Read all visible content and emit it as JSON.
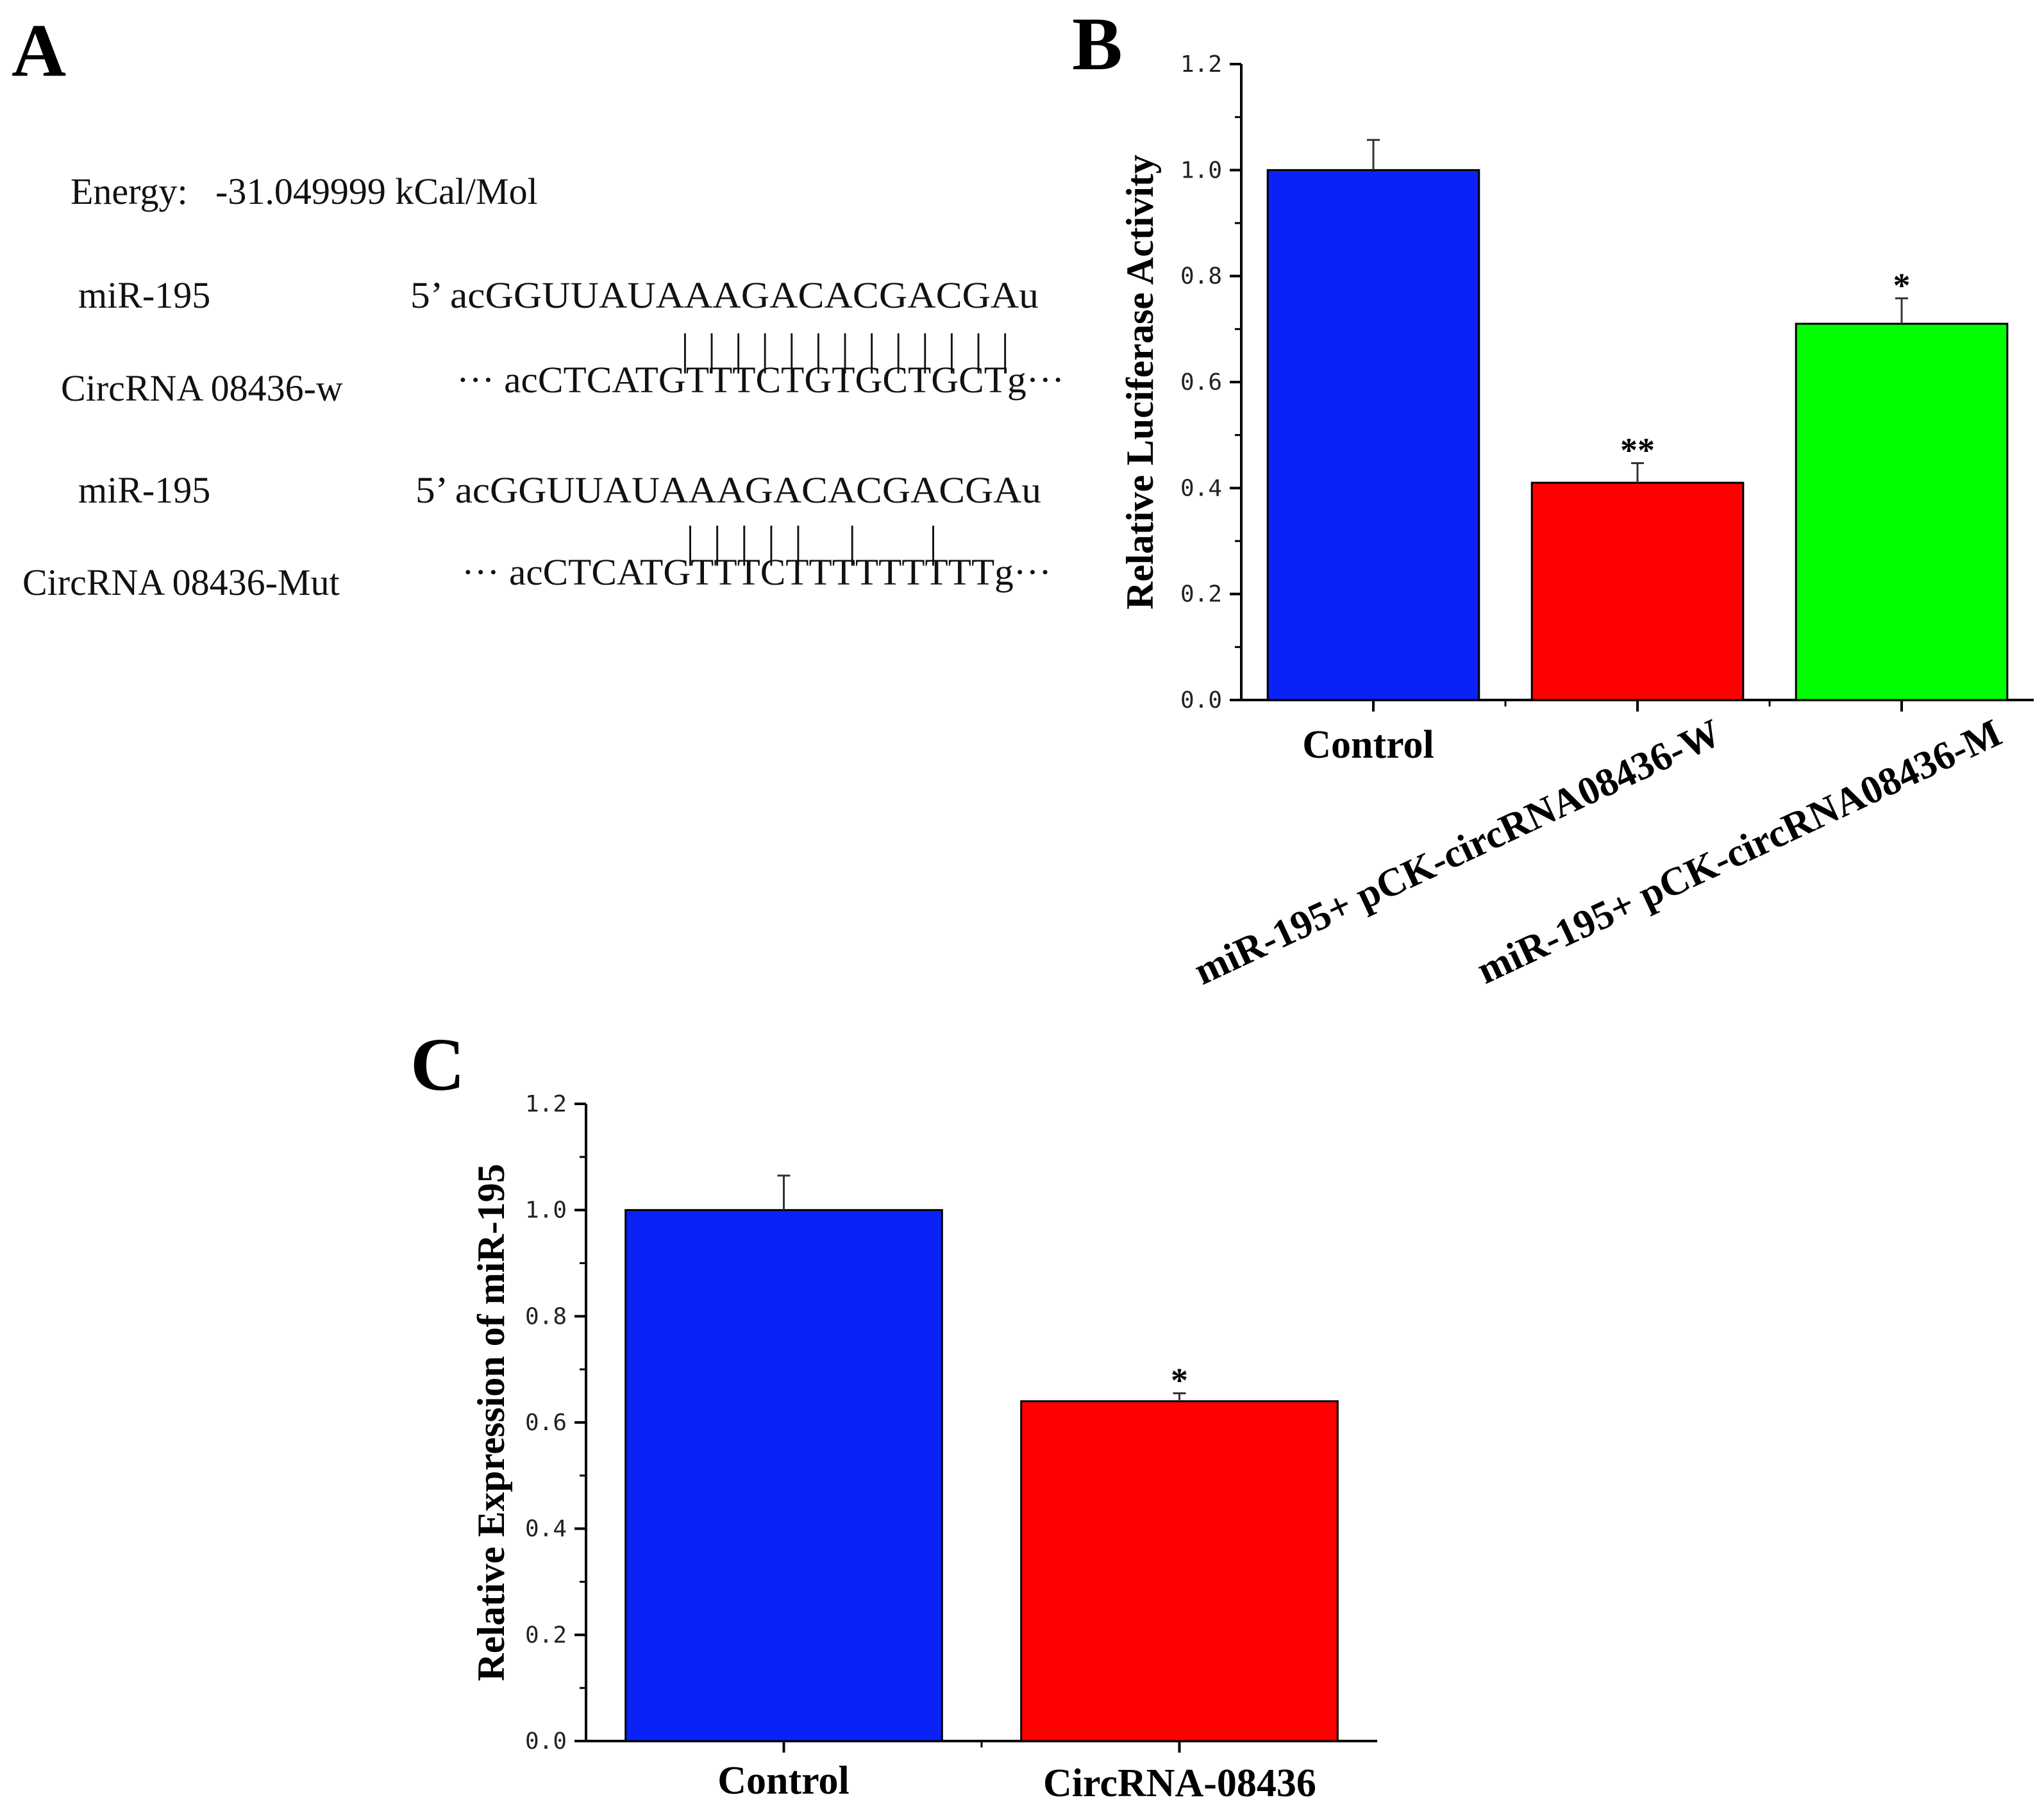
{
  "panel_a": {
    "letter": "A",
    "energy": "Energy:   -31.049999 kCal/Mol",
    "rows": [
      {
        "label": "miR-195",
        "seq": "5’ acGGUUAUAAAGACACGACGAu"
      },
      {
        "label": "CircRNA 08436-w",
        "seq": "··· acCTCATGTTTCTGTGCTGCTg···"
      },
      {
        "label": "miR-195",
        "seq": "5’ acGGUUAUAAAGACACGACGAu"
      },
      {
        "label": "CircRNA 08436-Mut",
        "seq": "··· acCTCATGTTTCTTTTTTTTTg···"
      }
    ],
    "pairing_w": "| | | | | | | | | | | | |",
    "pairing_mut": "| | | | |   |     |"
  },
  "chart_data": [
    {
      "panel": "B",
      "type": "bar",
      "categories": [
        "Control",
        "miR-195+ pCK-circRNA08436-W",
        "miR-195+ pCK-circRNA08436-M"
      ],
      "values": [
        1.0,
        0.41,
        0.71
      ],
      "errors": [
        0.057,
        0.037,
        0.048
      ],
      "colors": [
        "#0a22f8",
        "#ff0000",
        "#00ff00"
      ],
      "significance": [
        "",
        "**",
        "*"
      ],
      "title": "",
      "xlabel": "",
      "ylabel": "Relative Luciferase Activity",
      "ylim": [
        0,
        1.2
      ],
      "yticks": [
        0.0,
        0.2,
        0.4,
        0.6,
        0.8,
        1.0,
        1.2
      ],
      "ytick_labels": [
        "0.0",
        "0.2",
        "0.4",
        "0.6",
        "0.8",
        "1.0",
        "1.2"
      ],
      "grid": false
    },
    {
      "panel": "C",
      "type": "bar",
      "categories": [
        "Control",
        "CircRNA-08436"
      ],
      "values": [
        1.0,
        0.64
      ],
      "errors": [
        0.065,
        0.015
      ],
      "colors": [
        "#0a22f8",
        "#ff0000"
      ],
      "significance": [
        "",
        "*"
      ],
      "title": "",
      "xlabel": "",
      "ylabel": "Relative Expression of miR-195",
      "ylim": [
        0,
        1.2
      ],
      "yticks": [
        0.0,
        0.2,
        0.4,
        0.6,
        0.8,
        1.0,
        1.2
      ],
      "ytick_labels": [
        "0.0",
        "0.2",
        "0.4",
        "0.6",
        "0.8",
        "1.0",
        "1.2"
      ],
      "grid": false
    }
  ]
}
